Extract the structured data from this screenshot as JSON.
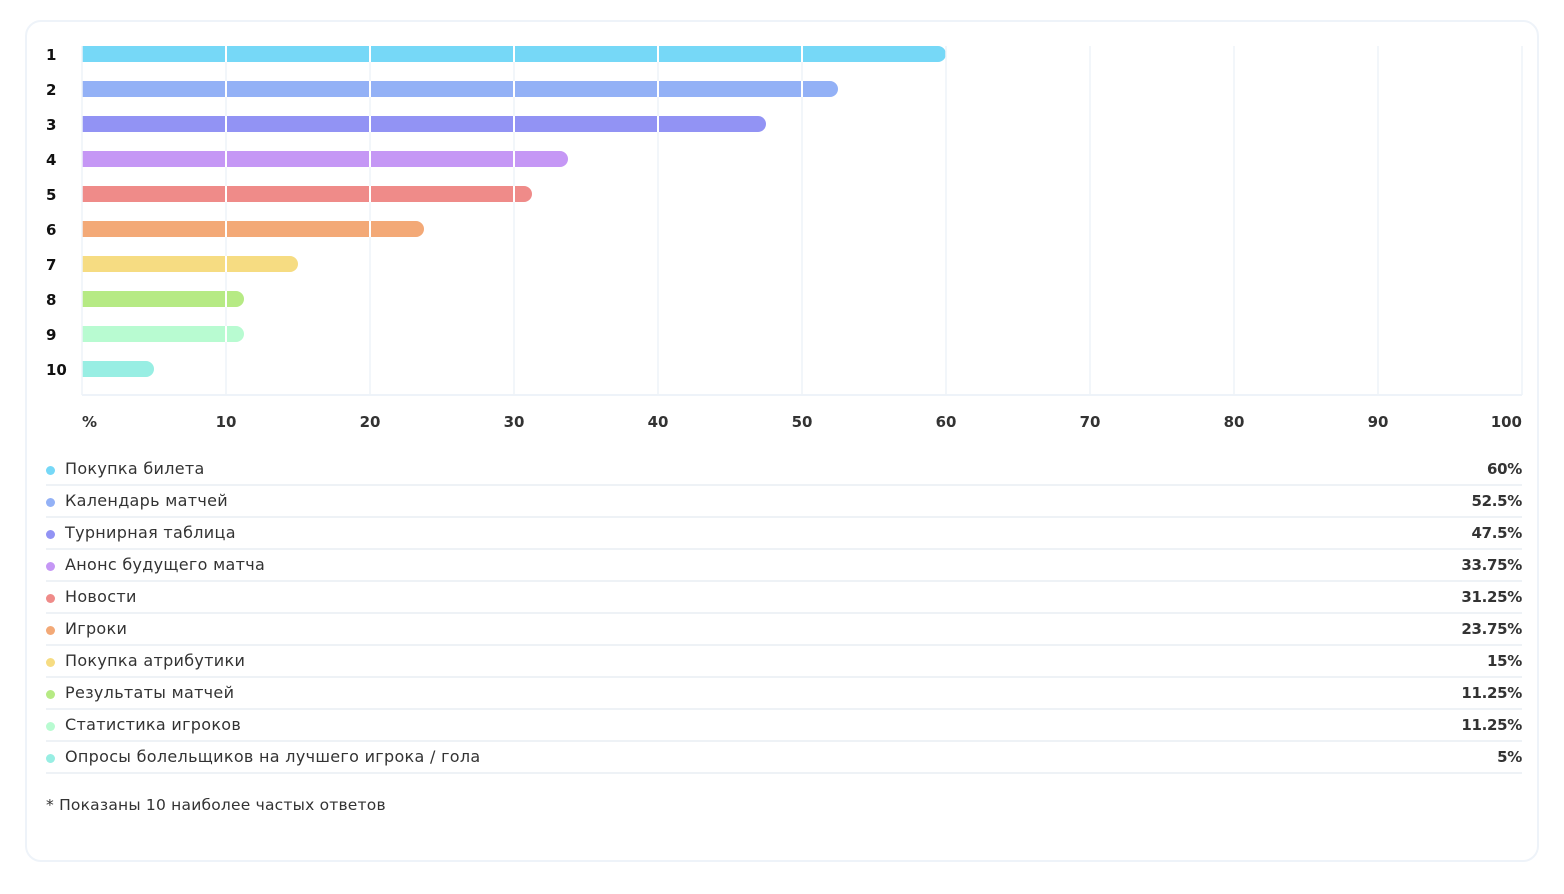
{
  "chart_data": {
    "type": "bar",
    "orientation": "horizontal",
    "categories": [
      "1",
      "2",
      "3",
      "4",
      "5",
      "6",
      "7",
      "8",
      "9",
      "10"
    ],
    "values": [
      60,
      52.5,
      47.5,
      33.75,
      31.25,
      23.75,
      15,
      11.25,
      11.25,
      5
    ],
    "series_names": [
      "Покупка билета",
      "Календарь матчей",
      "Турнирная таблица",
      "Анонс будущего матча",
      "Новости",
      "Игроки",
      "Покупка атрибутики",
      "Результаты матчей",
      "Статистика игроков",
      "Опросы болельщиков на лучшего игрока / гола"
    ],
    "colors": [
      "#76d8f7",
      "#93b1f6",
      "#9293f4",
      "#c597f5",
      "#ef8b89",
      "#f3a977",
      "#f6dc82",
      "#b6ea84",
      "#b8fbd1",
      "#98eee3"
    ],
    "xlim": [
      0,
      100
    ],
    "x_ticks": [
      "%",
      "10",
      "20",
      "30",
      "40",
      "50",
      "60",
      "70",
      "80",
      "90",
      "100"
    ],
    "xlabel": "%",
    "ylabel": "",
    "grid": true,
    "legend_position": "bottom"
  },
  "legend": [
    {
      "label": "Покупка билета",
      "value": "60%"
    },
    {
      "label": "Календарь матчей",
      "value": "52.5%"
    },
    {
      "label": "Турнирная таблица",
      "value": "47.5%"
    },
    {
      "label": "Анонс будущего матча",
      "value": "33.75%"
    },
    {
      "label": "Новости",
      "value": "31.25%"
    },
    {
      "label": "Игроки",
      "value": "23.75%"
    },
    {
      "label": "Покупка атрибутики",
      "value": "15%"
    },
    {
      "label": "Результаты матчей",
      "value": "11.25%"
    },
    {
      "label": "Статистика игроков",
      "value": "11.25%"
    },
    {
      "label": "Опросы болельщиков на лучшего игрока / гола",
      "value": "5%"
    }
  ],
  "footnote": "* Показаны 10 наиболее частых ответов"
}
